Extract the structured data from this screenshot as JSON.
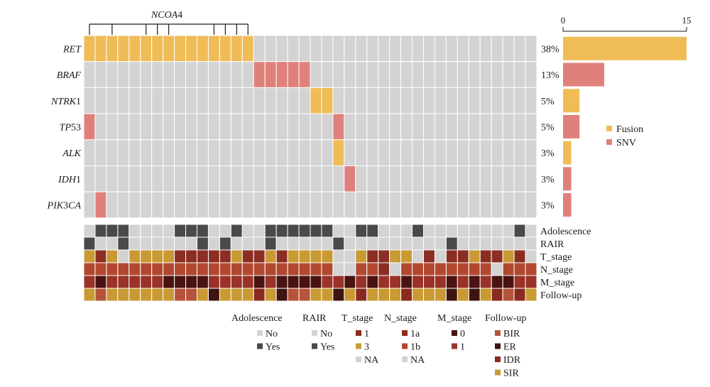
{
  "chart_data": {
    "type": "heatmap",
    "n_samples": 40,
    "genes": [
      {
        "name": "RET",
        "italic": "RET",
        "plain": "",
        "pct": "38%",
        "count": 15,
        "type": "Fusion",
        "cols": [
          0,
          1,
          2,
          3,
          4,
          5,
          6,
          7,
          8,
          9,
          10,
          11,
          12,
          13,
          14
        ]
      },
      {
        "name": "BRAF",
        "italic": "BRAF",
        "plain": "",
        "pct": "13%",
        "count": 5,
        "type": "SNV",
        "cols": [
          15,
          16,
          17,
          18,
          19
        ]
      },
      {
        "name": "NTRK1",
        "italic": "NTRK",
        "plain": "1",
        "pct": "5%",
        "count": 2,
        "type": "Fusion",
        "cols": [
          20,
          21
        ]
      },
      {
        "name": "TP53",
        "italic": "TP",
        "plain": "53",
        "pct": "5%",
        "count": 2,
        "type": "SNV",
        "cols": [
          0,
          22
        ]
      },
      {
        "name": "ALK",
        "italic": "ALK",
        "plain": "",
        "pct": "3%",
        "count": 1,
        "type": "Fusion",
        "cols": [
          22
        ]
      },
      {
        "name": "IDH1",
        "italic": "IDH",
        "plain": "1",
        "pct": "3%",
        "count": 1,
        "type": "SNV",
        "cols": [
          23
        ]
      },
      {
        "name": "PIK3CA",
        "italic": "PIK",
        "plain": "3",
        "italic2": "CA",
        "pct": "3%",
        "count": 1,
        "type": "SNV",
        "cols": [
          1
        ]
      }
    ],
    "bar_axis": {
      "min": 0,
      "max": 15,
      "tick_labels": [
        "0",
        "15"
      ]
    },
    "ncoa4": {
      "label_italic": "NCOA",
      "label_plain": "4",
      "cols": [
        0,
        2,
        5,
        6,
        7,
        11,
        12,
        13,
        14
      ]
    },
    "mutation_colors": {
      "Fusion": "#f0bc57",
      "SNV": "#e0807a",
      "None": "#d3d3d3"
    },
    "mutation_legend": [
      {
        "key": "Fusion",
        "label": "Fusion"
      },
      {
        "key": "SNV",
        "label": "SNV"
      }
    ],
    "tracks": [
      {
        "name": "Adolescence",
        "categories": {
          "No": "#d3d3d3",
          "Yes": "#4a4a4a"
        },
        "values": [
          "No",
          "Yes",
          "Yes",
          "Yes",
          "No",
          "No",
          "No",
          "No",
          "Yes",
          "Yes",
          "Yes",
          "No",
          "No",
          "Yes",
          "No",
          "No",
          "Yes",
          "Yes",
          "Yes",
          "Yes",
          "Yes",
          "Yes",
          "No",
          "No",
          "Yes",
          "Yes",
          "No",
          "No",
          "No",
          "Yes",
          "No",
          "No",
          "No",
          "No",
          "No",
          "No",
          "No",
          "No",
          "Yes",
          "No"
        ]
      },
      {
        "name": "RAIR",
        "categories": {
          "No": "#d3d3d3",
          "Yes": "#4a4a4a"
        },
        "values": [
          "Yes",
          "No",
          "No",
          "Yes",
          "No",
          "No",
          "No",
          "No",
          "No",
          "No",
          "Yes",
          "No",
          "Yes",
          "No",
          "No",
          "No",
          "Yes",
          "No",
          "No",
          "No",
          "No",
          "No",
          "Yes",
          "No",
          "No",
          "No",
          "No",
          "No",
          "No",
          "No",
          "No",
          "No",
          "Yes",
          "No",
          "No",
          "No",
          "No",
          "No",
          "No",
          "No"
        ]
      },
      {
        "name": "T_stage",
        "categories": {
          "1": "#8b2e22",
          "3": "#c99a34",
          "NA": "#d3d3d3"
        },
        "values": [
          "3",
          "1",
          "3",
          "NA",
          "3",
          "3",
          "3",
          "3",
          "1",
          "1",
          "1",
          "1",
          "1",
          "3",
          "1",
          "1",
          "3",
          "1",
          "3",
          "3",
          "3",
          "3",
          "NA",
          "NA",
          "3",
          "1",
          "1",
          "3",
          "3",
          "NA",
          "1",
          "NA",
          "1",
          "1",
          "3",
          "1",
          "1",
          "3",
          "1",
          "NA"
        ]
      },
      {
        "name": "N_stage",
        "categories": {
          "1a": "#8b2e22",
          "1b": "#b1482f",
          "NA": "#d3d3d3"
        },
        "values": [
          "1b",
          "1b",
          "1b",
          "1b",
          "1b",
          "1b",
          "1b",
          "1b",
          "1b",
          "1b",
          "1b",
          "1b",
          "1b",
          "1b",
          "1b",
          "1b",
          "1b",
          "1b",
          "1b",
          "1b",
          "1b",
          "1b",
          "NA",
          "NA",
          "1b",
          "1b",
          "1a",
          "NA",
          "1b",
          "1b",
          "1b",
          "1b",
          "1b",
          "1b",
          "1b",
          "1b",
          "NA",
          "1b",
          "1b",
          "1b"
        ]
      },
      {
        "name": "M_stage",
        "categories": {
          "0": "#4a1210",
          "1": "#9a3228"
        },
        "values": [
          "1",
          "0",
          "1",
          "1",
          "1",
          "1",
          "1",
          "0",
          "0",
          "0",
          "0",
          "1",
          "1",
          "1",
          "1",
          "0",
          "1",
          "0",
          "0",
          "0",
          "0",
          "1",
          "1",
          "0",
          "1",
          "0",
          "1",
          "1",
          "0",
          "1",
          "1",
          "1",
          "0",
          "1",
          "0",
          "1",
          "0",
          "0",
          "1",
          "1"
        ]
      },
      {
        "name": "Follow-up",
        "categories": {
          "BIR": "#b5543a",
          "ER": "#3d1410",
          "IDR": "#8a2a1e",
          "SIR": "#c99a34"
        },
        "values": [
          "SIR",
          "BIR",
          "SIR",
          "SIR",
          "SIR",
          "SIR",
          "SIR",
          "SIR",
          "BIR",
          "BIR",
          "SIR",
          "ER",
          "SIR",
          "SIR",
          "SIR",
          "IDR",
          "SIR",
          "ER",
          "BIR",
          "BIR",
          "SIR",
          "SIR",
          "ER",
          "SIR",
          "IDR",
          "SIR",
          "SIR",
          "SIR",
          "IDR",
          "SIR",
          "SIR",
          "SIR",
          "ER",
          "SIR",
          "ER",
          "SIR",
          "IDR",
          "BIR",
          "IDR",
          "SIR"
        ]
      }
    ],
    "annotation_legend": [
      {
        "title": "Adolescence",
        "track": "Adolescence",
        "items": [
          "No",
          "Yes"
        ]
      },
      {
        "title": "RAIR",
        "track": "RAIR",
        "items": [
          "No",
          "Yes"
        ]
      },
      {
        "title": "T_stage",
        "track": "T_stage",
        "items": [
          "1",
          "3",
          "NA"
        ]
      },
      {
        "title": "N_stage",
        "track": "N_stage",
        "items": [
          "1a",
          "1b",
          "NA"
        ]
      },
      {
        "title": "M_stage",
        "track": "M_stage",
        "items": [
          "0",
          "1"
        ]
      },
      {
        "title": "Follow-up",
        "track": "Follow-up",
        "items": [
          "BIR",
          "ER",
          "IDR",
          "SIR"
        ]
      }
    ]
  }
}
